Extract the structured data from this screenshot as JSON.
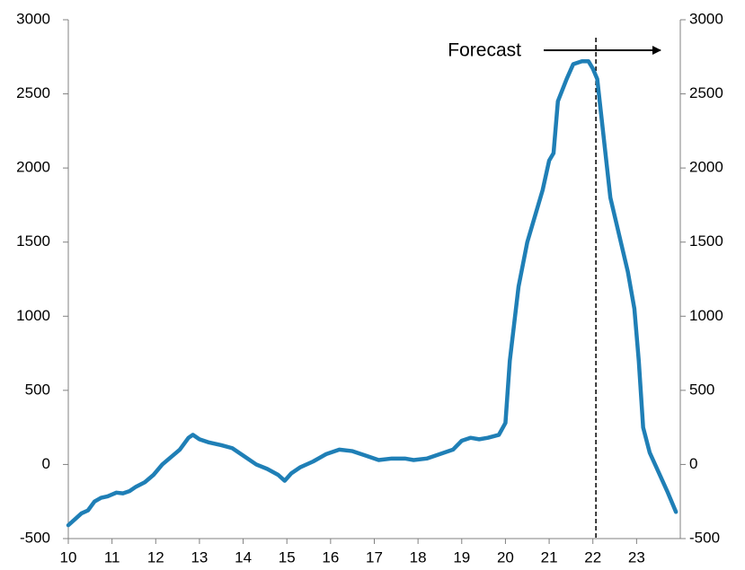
{
  "chart_data": {
    "type": "line",
    "x": [
      10.0,
      10.15,
      10.3,
      10.45,
      10.6,
      10.75,
      10.9,
      11.1,
      11.25,
      11.4,
      11.55,
      11.75,
      11.95,
      12.15,
      12.35,
      12.55,
      12.75,
      12.85,
      13.0,
      13.2,
      13.5,
      13.75,
      14.0,
      14.3,
      14.55,
      14.8,
      14.95,
      15.1,
      15.3,
      15.6,
      15.9,
      16.2,
      16.5,
      16.8,
      17.1,
      17.4,
      17.7,
      17.9,
      18.2,
      18.5,
      18.8,
      19.0,
      19.2,
      19.4,
      19.6,
      19.85,
      20.0,
      20.1,
      20.3,
      20.5,
      20.7,
      20.85,
      21.0,
      21.1,
      21.2,
      21.4,
      21.55,
      21.75,
      21.9,
      22.0,
      22.1,
      22.25,
      22.4,
      22.6,
      22.8,
      22.95,
      23.05,
      23.15,
      23.3,
      23.5,
      23.7,
      23.9
    ],
    "values": [
      -410,
      -370,
      -330,
      -310,
      -250,
      -225,
      -215,
      -190,
      -195,
      -180,
      -150,
      -120,
      -70,
      0,
      50,
      100,
      180,
      200,
      170,
      150,
      130,
      110,
      60,
      0,
      -30,
      -70,
      -110,
      -60,
      -20,
      20,
      70,
      100,
      90,
      60,
      30,
      40,
      40,
      30,
      40,
      70,
      100,
      160,
      180,
      170,
      180,
      200,
      280,
      700,
      1200,
      1500,
      1700,
      1850,
      2050,
      2100,
      2450,
      2600,
      2700,
      2720,
      2720,
      2670,
      2600,
      2200,
      1800,
      1550,
      1300,
      1050,
      700,
      250,
      80,
      -50,
      -180,
      -320
    ],
    "color": "#1f7fb6",
    "xlim": [
      10,
      24
    ],
    "xticks": [
      10,
      11,
      12,
      13,
      14,
      15,
      16,
      17,
      18,
      19,
      20,
      21,
      22,
      23
    ],
    "ylim": [
      -500,
      3000
    ],
    "yticks": [
      -500,
      0,
      500,
      1000,
      1500,
      2000,
      2500,
      3000
    ],
    "y2lim": [
      -500,
      3000
    ],
    "y2ticks": [
      -500,
      0,
      500,
      1000,
      1500,
      2000,
      2500,
      3000
    ],
    "annotation": "Forecast",
    "forecast_start": 22.07
  }
}
